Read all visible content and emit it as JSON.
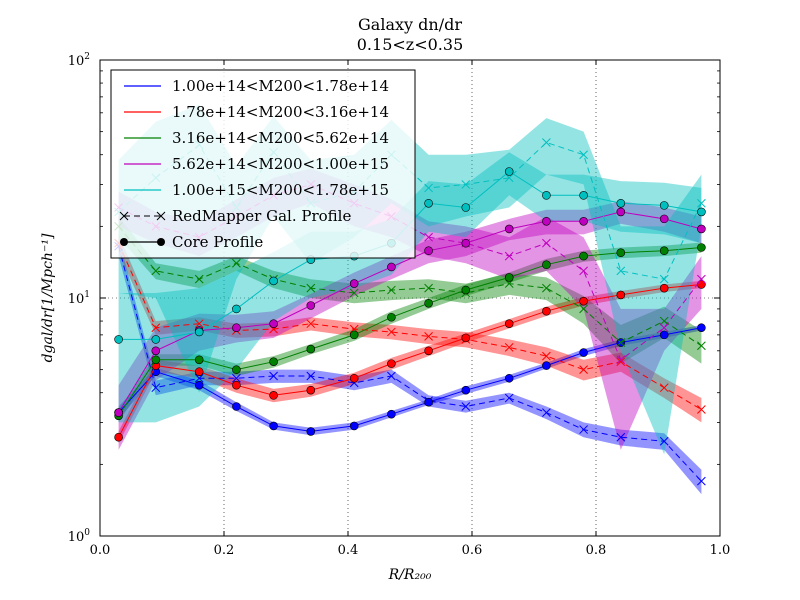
{
  "chart_data": {
    "type": "line",
    "title": "Galaxy dn/dr",
    "subtitle": "0.15<z<0.35",
    "xlabel": "R/R₂₀₀",
    "ylabel": "dgal/dr[1/Mpch⁻¹]",
    "x_scale": "linear",
    "y_scale": "log",
    "xlim": [
      0.0,
      1.0
    ],
    "ylim": [
      1,
      100
    ],
    "x_ticks": [
      "0.0",
      "0.2",
      "0.4",
      "0.6",
      "0.8",
      "1.0"
    ],
    "x_tick_values": [
      0.0,
      0.2,
      0.4,
      0.6,
      0.8,
      1.0
    ],
    "y_tick_values": [
      1,
      10,
      100
    ],
    "y_tick_base": "10",
    "y_tick_exps": [
      "0",
      "1",
      "2"
    ],
    "grid": true,
    "legend_position": "top-left",
    "x": [
      0.03,
      0.09,
      0.16,
      0.22,
      0.28,
      0.34,
      0.41,
      0.47,
      0.53,
      0.59,
      0.66,
      0.72,
      0.78,
      0.84,
      0.91,
      0.97
    ],
    "series": [
      {
        "name": "1.00e+14<M200<1.78e+14",
        "color": "#0000ff",
        "redmapper": [
          16.5,
          4.2,
          4.6,
          4.6,
          4.7,
          4.7,
          4.4,
          4.7,
          3.7,
          3.5,
          3.8,
          3.3,
          2.8,
          2.6,
          2.5,
          1.7
        ],
        "redmapper_lo": [
          15.0,
          3.9,
          4.3,
          4.3,
          4.4,
          4.4,
          4.1,
          4.4,
          3.5,
          3.3,
          3.6,
          3.1,
          2.6,
          2.4,
          2.3,
          1.5
        ],
        "redmapper_hi": [
          18.0,
          4.5,
          4.9,
          4.9,
          5.0,
          5.0,
          4.7,
          5.0,
          3.9,
          3.7,
          4.0,
          3.5,
          3.0,
          2.8,
          2.7,
          1.9
        ],
        "core": [
          3.3,
          4.9,
          4.3,
          3.5,
          2.9,
          2.75,
          2.9,
          3.25,
          3.65,
          4.1,
          4.6,
          5.2,
          5.9,
          6.5,
          7.0,
          7.5
        ],
        "core_lo": [
          3.1,
          4.7,
          4.1,
          3.35,
          2.8,
          2.65,
          2.8,
          3.15,
          3.55,
          3.95,
          4.45,
          5.05,
          5.7,
          6.3,
          6.8,
          7.3
        ],
        "core_hi": [
          3.5,
          5.1,
          4.5,
          3.65,
          3.0,
          2.85,
          3.0,
          3.35,
          3.75,
          4.25,
          4.75,
          5.35,
          6.1,
          6.7,
          7.2,
          7.7
        ]
      },
      {
        "name": "1.78e+14<M200<3.16e+14",
        "color": "#ff0000",
        "redmapper": [
          17.0,
          7.5,
          7.8,
          7.3,
          7.4,
          7.8,
          7.4,
          7.2,
          6.9,
          6.7,
          6.2,
          5.7,
          5.0,
          5.4,
          4.2,
          3.4
        ],
        "redmapper_lo": [
          15.5,
          7.0,
          7.3,
          6.8,
          6.9,
          7.3,
          6.9,
          6.7,
          6.4,
          6.2,
          5.7,
          5.2,
          4.5,
          4.9,
          3.8,
          3.0
        ],
        "redmapper_hi": [
          18.5,
          8.0,
          8.3,
          7.8,
          7.9,
          8.3,
          7.9,
          7.7,
          7.4,
          7.2,
          6.7,
          6.2,
          5.5,
          5.9,
          4.6,
          3.8
        ],
        "core": [
          2.6,
          5.2,
          4.9,
          4.3,
          3.9,
          4.1,
          4.6,
          5.3,
          6.0,
          6.8,
          7.8,
          8.8,
          9.7,
          10.3,
          11.0,
          11.4
        ],
        "core_lo": [
          2.45,
          4.9,
          4.6,
          4.0,
          3.65,
          3.85,
          4.35,
          5.0,
          5.7,
          6.5,
          7.45,
          8.4,
          9.3,
          9.9,
          10.6,
          11.0
        ],
        "core_hi": [
          2.75,
          5.5,
          5.2,
          4.6,
          4.15,
          4.35,
          4.85,
          5.6,
          6.3,
          7.1,
          8.15,
          9.2,
          10.1,
          10.7,
          11.4,
          11.8
        ]
      },
      {
        "name": "3.16e+14<M200<5.62e+14",
        "color": "#008000",
        "redmapper": [
          20.0,
          13.0,
          12.0,
          14.0,
          12.0,
          11.0,
          10.5,
          10.8,
          11.0,
          10.5,
          11.5,
          11.0,
          9.0,
          6.5,
          8.0,
          6.3
        ],
        "redmapper_lo": [
          18.0,
          12.0,
          11.0,
          13.0,
          11.0,
          10.0,
          9.5,
          9.8,
          10.0,
          9.5,
          10.3,
          9.8,
          7.8,
          5.3,
          6.8,
          5.3
        ],
        "redmapper_hi": [
          22.0,
          14.0,
          13.0,
          15.0,
          13.0,
          12.0,
          11.5,
          11.8,
          12.0,
          11.5,
          12.7,
          12.2,
          10.2,
          7.7,
          9.2,
          7.3
        ],
        "core": [
          3.2,
          5.5,
          5.5,
          5.0,
          5.4,
          6.1,
          7.0,
          8.3,
          9.5,
          10.8,
          12.2,
          13.8,
          15.0,
          15.5,
          15.8,
          16.3
        ],
        "core_lo": [
          3.0,
          5.2,
          5.2,
          4.7,
          5.1,
          5.8,
          6.6,
          7.8,
          9.0,
          10.2,
          11.6,
          13.0,
          14.2,
          14.7,
          15.0,
          15.5
        ],
        "core_hi": [
          3.4,
          5.8,
          5.8,
          5.3,
          5.7,
          6.4,
          7.4,
          8.8,
          10.0,
          11.4,
          12.8,
          14.6,
          15.8,
          16.3,
          16.6,
          17.1
        ]
      },
      {
        "name": "5.62e+14<M200<1.00e+15",
        "color": "#bf00bf",
        "redmapper": [
          24.0,
          20.0,
          18.0,
          22.0,
          27.0,
          30.0,
          25.0,
          22.0,
          18.0,
          17.0,
          15.0,
          17.0,
          13.0,
          5.5,
          7.5,
          12.0
        ],
        "redmapper_lo": [
          20.0,
          17.0,
          15.0,
          18.0,
          22.0,
          25.0,
          20.0,
          18.0,
          15.0,
          14.0,
          12.0,
          13.0,
          9.0,
          2.3,
          6.0,
          9.0
        ],
        "redmapper_hi": [
          28.0,
          23.0,
          21.0,
          26.0,
          32.0,
          35.0,
          30.0,
          26.0,
          21.0,
          20.0,
          18.0,
          22.0,
          18.0,
          9.0,
          9.0,
          15.0
        ],
        "core": [
          3.3,
          6.0,
          7.3,
          7.5,
          7.8,
          9.3,
          11.5,
          13.5,
          15.8,
          17.0,
          19.5,
          21.0,
          21.0,
          23.0,
          21.5,
          19.5
        ],
        "core_lo": [
          2.3,
          4.5,
          6.0,
          6.5,
          6.8,
          8.2,
          10.2,
          12.0,
          14.0,
          15.0,
          17.5,
          18.5,
          18.5,
          20.5,
          19.0,
          17.0
        ],
        "core_hi": [
          4.3,
          7.5,
          8.6,
          8.5,
          8.8,
          10.4,
          12.8,
          15.0,
          17.6,
          19.0,
          21.5,
          23.5,
          23.5,
          25.5,
          24.0,
          22.0
        ]
      },
      {
        "name": "1.00e+15<M200<1.78e+15",
        "color": "#00bfbf",
        "redmapper": [
          23.0,
          32.0,
          44.0,
          24.0,
          41.0,
          25.0,
          28.0,
          40.0,
          29.0,
          30.0,
          32.0,
          45.0,
          40.0,
          13.0,
          12.0,
          25.0
        ],
        "redmapper_lo": [
          10.5,
          10.0,
          4.0,
          12.0,
          22.0,
          14.0,
          18.0,
          25.0,
          20.0,
          22.0,
          24.0,
          33.0,
          30.0,
          6.0,
          2.2,
          20.0
        ],
        "redmapper_hi": [
          38.0,
          55.0,
          65.0,
          36.0,
          58.0,
          38.0,
          40.0,
          56.0,
          40.0,
          40.0,
          42.0,
          57.0,
          50.0,
          20.0,
          20.0,
          33.0
        ],
        "core": [
          6.7,
          6.7,
          7.2,
          9.0,
          11.8,
          14.5,
          15.0,
          17.0,
          25.0,
          24.0,
          34.0,
          27.0,
          27.0,
          25.0,
          24.5,
          23.0
        ],
        "core_lo": [
          3.0,
          3.0,
          3.5,
          5.0,
          8.0,
          10.0,
          11.0,
          12.5,
          19.0,
          18.0,
          27.0,
          21.0,
          21.0,
          19.0,
          18.5,
          17.0
        ],
        "core_hi": [
          10.5,
          10.5,
          11.0,
          13.0,
          15.6,
          19.0,
          19.0,
          21.5,
          31.0,
          30.0,
          41.0,
          33.0,
          33.0,
          31.0,
          30.5,
          29.0
        ]
      }
    ],
    "legend_extra": [
      {
        "name": "RedMapper Gal. Profile",
        "style": "dashed-x"
      },
      {
        "name": "Core Profile",
        "style": "solid-o"
      }
    ]
  }
}
